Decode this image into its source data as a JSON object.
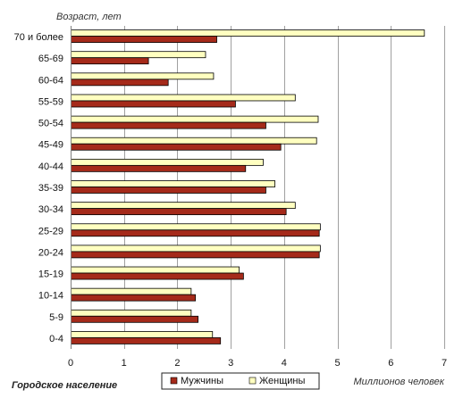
{
  "chart_data": {
    "type": "bar",
    "orientation": "horizontal",
    "ylabel": "Возраст, лет",
    "xlabel": "Миллионов человек",
    "footer_label": "Городское население",
    "xlim": [
      0,
      7
    ],
    "xticks": [
      0,
      1,
      2,
      3,
      4,
      5,
      6,
      7
    ],
    "grid": true,
    "legend_placement": "bottom-center",
    "categories": [
      "70 и более",
      "65-69",
      "60-64",
      "55-59",
      "50-54",
      "45-49",
      "40-44",
      "35-39",
      "30-34",
      "25-29",
      "20-24",
      "15-19",
      "10-14",
      "5-9",
      "0-4"
    ],
    "series": [
      {
        "name": "Женщины",
        "color": "#ffffc0",
        "values": [
          6.62,
          2.52,
          2.67,
          4.2,
          4.63,
          4.6,
          3.6,
          3.82,
          4.2,
          4.67,
          4.67,
          3.15,
          2.25,
          2.25,
          2.65
        ]
      },
      {
        "name": "Мужчины",
        "color": "#a52a1a",
        "values": [
          2.73,
          1.45,
          1.82,
          3.08,
          3.65,
          3.93,
          3.27,
          3.65,
          4.03,
          4.65,
          4.65,
          3.23,
          2.33,
          2.38,
          2.8
        ]
      }
    ],
    "legend": [
      "Мужчины",
      "Женщины"
    ]
  }
}
